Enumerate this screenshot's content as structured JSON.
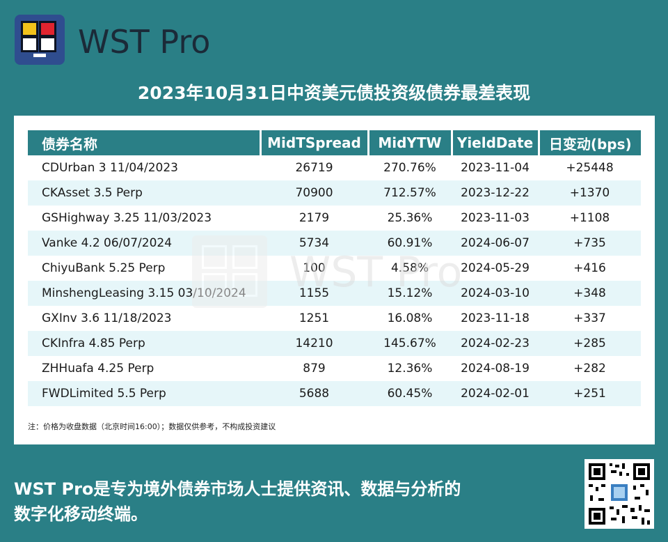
{
  "brand": {
    "name": "WST Pro",
    "logo_icon": "wst-pro-logo-icon"
  },
  "title": "2023年10月31日中资美元债投资级债券最差表现",
  "table": {
    "headers": [
      "债券名称",
      "MidTSpread",
      "MidYTW",
      "YieldDate",
      "日变动(bps)"
    ],
    "rows": [
      [
        "CDUrban 3 11/04/2023",
        "26719",
        "270.76%",
        "2023-11-04",
        "+25448"
      ],
      [
        "CKAsset 3.5 Perp",
        "70900",
        "712.57%",
        "2023-12-22",
        "+1370"
      ],
      [
        "GSHighway 3.25 11/03/2023",
        "2179",
        "25.36%",
        "2023-11-03",
        "+1108"
      ],
      [
        "Vanke 4.2 06/07/2024",
        "5734",
        "60.91%",
        "2024-06-07",
        "+735"
      ],
      [
        "ChiyuBank 5.25 Perp",
        "100",
        "4.58%",
        "2024-05-29",
        "+416"
      ],
      [
        "MinshengLeasing 3.15 03/10/2024",
        "1155",
        "15.12%",
        "2024-03-10",
        "+348"
      ],
      [
        "GXInv 3.6 11/18/2023",
        "1251",
        "16.08%",
        "2023-11-18",
        "+337"
      ],
      [
        "CKInfra 4.85 Perp",
        "14210",
        "145.67%",
        "2024-02-23",
        "+285"
      ],
      [
        "ZHHuafa 4.25 Perp",
        "879",
        "12.36%",
        "2024-08-19",
        "+282"
      ],
      [
        "FWDLimited 5.5 Perp",
        "5688",
        "60.45%",
        "2024-02-01",
        "+251"
      ]
    ]
  },
  "watermark": "WST Pro",
  "note": "注：价格为收盘数据（北京时间16:00）；数据仅供参考，不构成投资建议",
  "footer": {
    "line1": "WST Pro是专为境外债券市场人士提供资讯、数据与分析的",
    "line2": "数字化移动终端。"
  },
  "colors": {
    "background": "#2a7f86",
    "header_bg": "#2a7f86",
    "row_alt": "#e6f6f9",
    "logo_bg": "#2f4d8f"
  }
}
